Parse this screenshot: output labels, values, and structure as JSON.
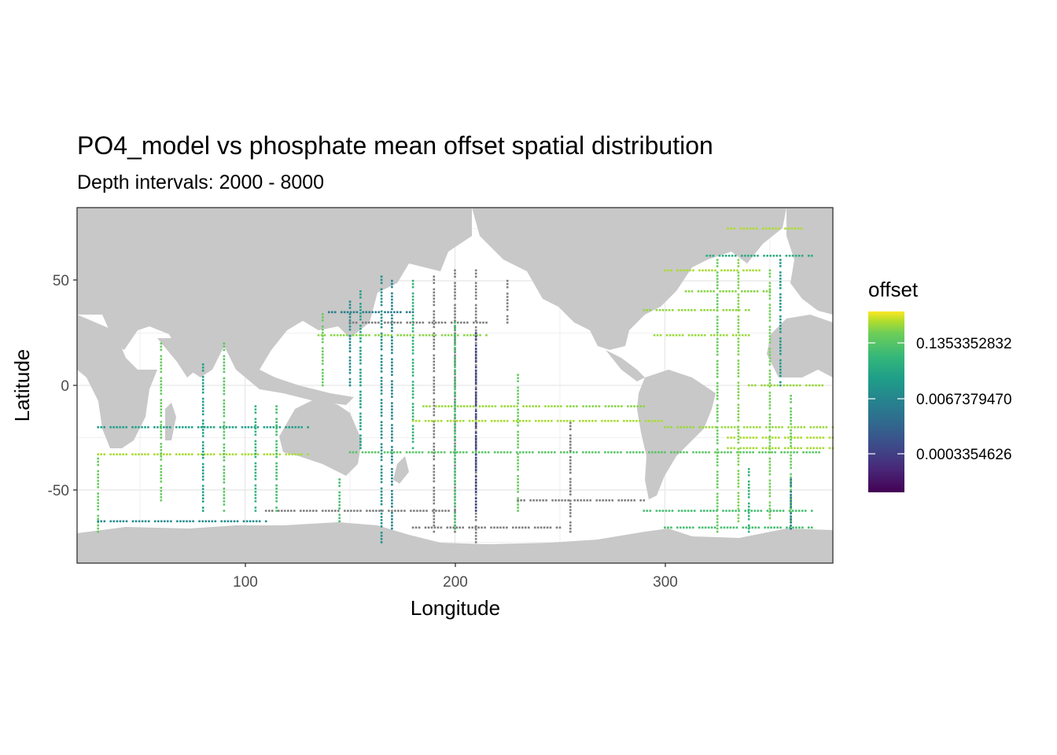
{
  "chart_data": {
    "type": "heatmap",
    "title": "PO4_model vs phosphate mean offset spatial distribution",
    "subtitle": "Depth intervals: 2000 - 8000",
    "xlabel": "Longitude",
    "ylabel": "Latitude",
    "xlim": [
      20,
      380
    ],
    "ylim": [
      -85,
      85
    ],
    "x_ticks": [
      "100",
      "200",
      "300"
    ],
    "y_ticks": [
      "50",
      "0",
      "-50"
    ],
    "x_tick_values": [
      100,
      200,
      300
    ],
    "y_tick_values": [
      50,
      0,
      -50
    ],
    "grid": true,
    "legend": {
      "title": "offset",
      "placement": "right",
      "colormap": "viridis",
      "scale": "log",
      "labels": [
        "0.1353352832",
        "0.0067379470",
        "0.0003354626"
      ],
      "label_values": [
        0.1353352832,
        0.006737947,
        0.0003354626
      ]
    },
    "colors": {
      "land": "#c8c8c8",
      "missing": "#7f7f7f",
      "grid_major": "#ebebeb",
      "panel_border": "#333333"
    },
    "tracks": [
      {
        "lon": [
          165,
          165
        ],
        "lat": [
          52,
          -75
        ],
        "value": 0.006
      },
      {
        "lon": [
          155,
          155
        ],
        "lat": [
          45,
          -30
        ],
        "value": 0.01
      },
      {
        "lon": [
          150,
          150
        ],
        "lat": [
          40,
          0
        ],
        "value": 0.005
      },
      {
        "lon": [
          137,
          137
        ],
        "lat": [
          34,
          0
        ],
        "value": 0.05
      },
      {
        "lon": [
          180,
          180
        ],
        "lat": [
          50,
          -30
        ],
        "value": 0.02
      },
      {
        "lon": [
          170,
          170
        ],
        "lat": [
          50,
          -70
        ],
        "value": 0.004
      },
      {
        "lon": [
          135,
          215
        ],
        "lat": [
          24,
          24
        ],
        "value": 0.08
      },
      {
        "lon": [
          150,
          215
        ],
        "lat": [
          30,
          30
        ],
        "value": 0.0004
      },
      {
        "lon": [
          140,
          180
        ],
        "lat": [
          35,
          35
        ],
        "value": 0.003
      },
      {
        "lon": [
          190,
          190
        ],
        "lat": [
          52,
          -70
        ],
        "value": 0.0003
      },
      {
        "lon": [
          200,
          200
        ],
        "lat": [
          55,
          -70
        ],
        "value": 0.0003
      },
      {
        "lon": [
          210,
          210
        ],
        "lat": [
          55,
          -75
        ],
        "value": 0.0003
      },
      {
        "lon": [
          225,
          225
        ],
        "lat": [
          50,
          30
        ],
        "value": 0.0003
      },
      {
        "lon": [
          150,
          375
        ],
        "lat": [
          -32,
          -32
        ],
        "value": 0.04
      },
      {
        "lon": [
          200,
          200
        ],
        "lat": [
          30,
          -70
        ],
        "value": 0.03
      },
      {
        "lon": [
          210,
          210
        ],
        "lat": [
          25,
          -60
        ],
        "value": 0.0005
      },
      {
        "lon": [
          230,
          230
        ],
        "lat": [
          5,
          -60
        ],
        "value": 0.05
      },
      {
        "lon": [
          255,
          255
        ],
        "lat": [
          -18,
          -70
        ],
        "value": 0.0003
      },
      {
        "lon": [
          180,
          300
        ],
        "lat": [
          -17,
          -17
        ],
        "value": 0.12
      },
      {
        "lon": [
          185,
          255
        ],
        "lat": [
          -10,
          -10
        ],
        "value": 0.1
      },
      {
        "lon": [
          255,
          290
        ],
        "lat": [
          -10,
          -10
        ],
        "value": 0.08
      },
      {
        "lon": [
          30,
          130
        ],
        "lat": [
          -33,
          -33
        ],
        "value": 0.12
      },
      {
        "lon": [
          30,
          130
        ],
        "lat": [
          -20,
          -20
        ],
        "value": 0.01
      },
      {
        "lon": [
          90,
          90
        ],
        "lat": [
          20,
          -60
        ],
        "value": 0.04
      },
      {
        "lon": [
          80,
          80
        ],
        "lat": [
          10,
          -60
        ],
        "value": 0.01
      },
      {
        "lon": [
          60,
          60
        ],
        "lat": [
          20,
          -55
        ],
        "value": 0.05
      },
      {
        "lon": [
          105,
          105
        ],
        "lat": [
          -10,
          -60
        ],
        "value": 0.02
      },
      {
        "lon": [
          115,
          115
        ],
        "lat": [
          -10,
          -60
        ],
        "value": 0.03
      },
      {
        "lon": [
          30,
          30
        ],
        "lat": [
          -35,
          -70
        ],
        "value": 0.05
      },
      {
        "lon": [
          30,
          110
        ],
        "lat": [
          -65,
          -65
        ],
        "value": 0.005
      },
      {
        "lon": [
          330,
          380
        ],
        "lat": [
          -25,
          -25
        ],
        "value": 0.13
      },
      {
        "lon": [
          330,
          380
        ],
        "lat": [
          -30,
          -30
        ],
        "value": 0.12
      },
      {
        "lon": [
          300,
          380
        ],
        "lat": [
          -20,
          -20
        ],
        "value": 0.1
      },
      {
        "lon": [
          335,
          335
        ],
        "lat": [
          60,
          -65
        ],
        "value": 0.07
      },
      {
        "lon": [
          325,
          325
        ],
        "lat": [
          60,
          -70
        ],
        "value": 0.05
      },
      {
        "lon": [
          350,
          350
        ],
        "lat": [
          55,
          -65
        ],
        "value": 0.06
      },
      {
        "lon": [
          355,
          355
        ],
        "lat": [
          60,
          0
        ],
        "value": 0.008
      },
      {
        "lon": [
          360,
          360
        ],
        "lat": [
          -5,
          -65
        ],
        "value": 0.05
      },
      {
        "lon": [
          340,
          375
        ],
        "lat": [
          0,
          0
        ],
        "value": 0.1
      },
      {
        "lon": [
          295,
          340
        ],
        "lat": [
          24,
          24
        ],
        "value": 0.1
      },
      {
        "lon": [
          290,
          340
        ],
        "lat": [
          36,
          36
        ],
        "value": 0.09
      },
      {
        "lon": [
          310,
          350
        ],
        "lat": [
          45,
          45
        ],
        "value": 0.08
      },
      {
        "lon": [
          300,
          345
        ],
        "lat": [
          55,
          55
        ],
        "value": 0.12
      },
      {
        "lon": [
          330,
          365
        ],
        "lat": [
          75,
          75
        ],
        "value": 0.13
      },
      {
        "lon": [
          320,
          370
        ],
        "lat": [
          62,
          62
        ],
        "value": 0.015
      },
      {
        "lon": [
          290,
          370
        ],
        "lat": [
          -60,
          -60
        ],
        "value": 0.03
      },
      {
        "lon": [
          300,
          370
        ],
        "lat": [
          -68,
          -68
        ],
        "value": 0.03
      },
      {
        "lon": [
          360,
          360
        ],
        "lat": [
          -45,
          -70
        ],
        "value": 0.003
      },
      {
        "lon": [
          340,
          340
        ],
        "lat": [
          -40,
          -70
        ],
        "value": 0.02
      },
      {
        "lon": [
          110,
          200
        ],
        "lat": [
          -60,
          -60
        ],
        "value": 0.0003
      },
      {
        "lon": [
          180,
          250
        ],
        "lat": [
          -68,
          -68
        ],
        "value": 0.0003
      },
      {
        "lon": [
          230,
          290
        ],
        "lat": [
          -55,
          -55
        ],
        "value": 0.0003
      },
      {
        "lon": [
          145,
          145
        ],
        "lat": [
          -45,
          -65
        ],
        "value": 0.03
      }
    ]
  }
}
